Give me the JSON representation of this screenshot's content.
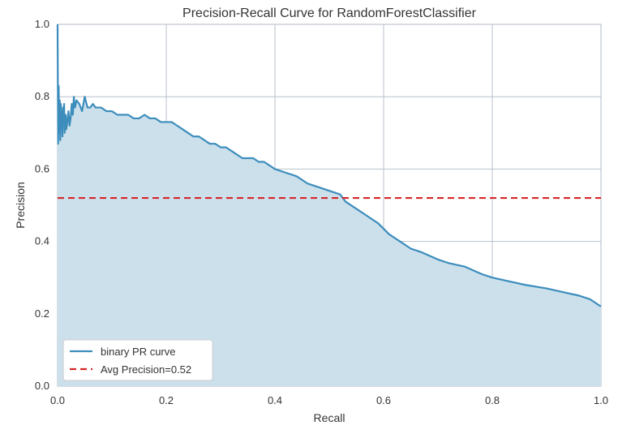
{
  "chart_data": {
    "type": "area",
    "title": "Precision-Recall Curve for RandomForestClassifier",
    "xlabel": "Recall",
    "ylabel": "Precision",
    "xlim": [
      0.0,
      1.0
    ],
    "ylim": [
      0.0,
      1.0
    ],
    "x_ticks": [
      "0.0",
      "0.2",
      "0.4",
      "0.6",
      "0.8",
      "1.0"
    ],
    "y_ticks": [
      "0.0",
      "0.2",
      "0.4",
      "0.6",
      "0.8",
      "1.0"
    ],
    "grid": true,
    "legend_position": "lower-left",
    "series": [
      {
        "name": "binary PR curve",
        "color": "#3c8dbc",
        "fill_color": "#cce0ec",
        "x": [
          0.0,
          0.001,
          0.002,
          0.003,
          0.004,
          0.005,
          0.006,
          0.007,
          0.008,
          0.009,
          0.01,
          0.011,
          0.012,
          0.013,
          0.015,
          0.016,
          0.018,
          0.02,
          0.022,
          0.024,
          0.026,
          0.028,
          0.03,
          0.032,
          0.035,
          0.04,
          0.045,
          0.05,
          0.055,
          0.06,
          0.065,
          0.07,
          0.08,
          0.09,
          0.1,
          0.11,
          0.12,
          0.13,
          0.14,
          0.15,
          0.16,
          0.17,
          0.18,
          0.19,
          0.2,
          0.21,
          0.22,
          0.23,
          0.24,
          0.25,
          0.26,
          0.27,
          0.28,
          0.29,
          0.3,
          0.31,
          0.32,
          0.33,
          0.34,
          0.35,
          0.36,
          0.37,
          0.38,
          0.39,
          0.4,
          0.42,
          0.44,
          0.46,
          0.48,
          0.5,
          0.52,
          0.53,
          0.55,
          0.57,
          0.59,
          0.61,
          0.63,
          0.65,
          0.67,
          0.7,
          0.72,
          0.75,
          0.78,
          0.8,
          0.83,
          0.86,
          0.9,
          0.93,
          0.96,
          0.98,
          1.0
        ],
        "y": [
          1.0,
          0.67,
          0.83,
          0.7,
          0.79,
          0.68,
          0.78,
          0.73,
          0.76,
          0.69,
          0.77,
          0.74,
          0.78,
          0.7,
          0.75,
          0.71,
          0.73,
          0.76,
          0.72,
          0.74,
          0.78,
          0.75,
          0.8,
          0.77,
          0.79,
          0.78,
          0.76,
          0.8,
          0.77,
          0.77,
          0.78,
          0.77,
          0.77,
          0.76,
          0.76,
          0.75,
          0.75,
          0.75,
          0.74,
          0.74,
          0.75,
          0.74,
          0.74,
          0.73,
          0.73,
          0.73,
          0.72,
          0.71,
          0.7,
          0.69,
          0.69,
          0.68,
          0.67,
          0.67,
          0.66,
          0.66,
          0.65,
          0.64,
          0.63,
          0.63,
          0.63,
          0.62,
          0.62,
          0.61,
          0.6,
          0.59,
          0.58,
          0.56,
          0.55,
          0.54,
          0.53,
          0.51,
          0.49,
          0.47,
          0.45,
          0.42,
          0.4,
          0.38,
          0.37,
          0.35,
          0.34,
          0.33,
          0.31,
          0.3,
          0.29,
          0.28,
          0.27,
          0.26,
          0.25,
          0.24,
          0.22
        ]
      },
      {
        "name": "Avg Precision=0.52",
        "color": "#d62728",
        "style": "dashed",
        "x": [
          0.0,
          1.0
        ],
        "y": [
          0.52,
          0.52
        ]
      }
    ]
  }
}
